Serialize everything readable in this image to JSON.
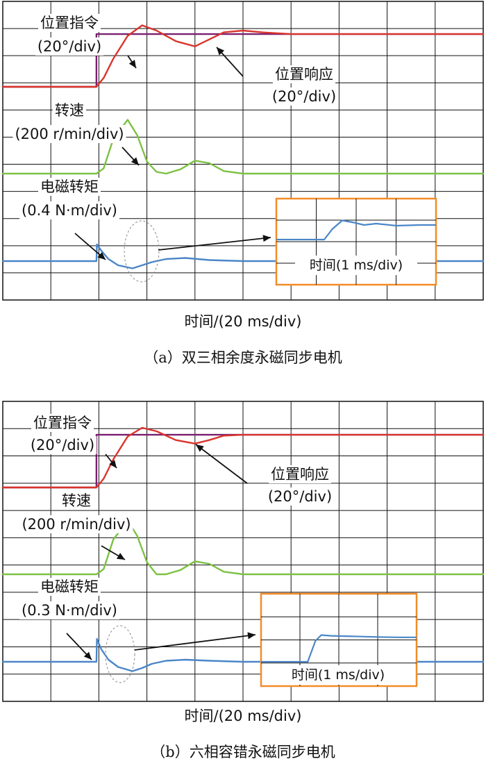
{
  "colors": {
    "command": "#7a1f6f",
    "position": "#d9342b",
    "speed": "#7cc142",
    "torque": "#4a86c8",
    "grid": "#111111",
    "inset_border": "#f28c28"
  },
  "panels": [
    {
      "caption": "（a）双三相余度永磁同步电机",
      "xlabel": "时间/(20 ms/div)",
      "labels": {
        "cmd": "位置指令",
        "cmd_div": "(20°/div)",
        "resp": "位置响应",
        "resp_div": "(20°/div)",
        "speed": "转速",
        "speed_div": "(200 r/min/div)",
        "torque": "电磁转矩",
        "torque_div": "(0.4 N·m/div)",
        "inset_xlabel": "时间(1 ms/div)"
      }
    },
    {
      "caption": "（b）六相容错永磁同步电机",
      "xlabel": "时间/(20 ms/div)",
      "labels": {
        "cmd": "位置指令",
        "cmd_div": "(20°/div)",
        "resp": "位置响应",
        "resp_div": "(20°/div)",
        "speed": "转速",
        "speed_div": "(200 r/min/div)",
        "torque": "电磁转矩",
        "torque_div": "(0.3 N·m/div)",
        "inset_xlabel": "时间(1 ms/div)"
      }
    }
  ],
  "chart_data": [
    {
      "type": "line",
      "x_unit": "div (20 ms/div)",
      "x_range": [
        0,
        10
      ],
      "step_time_div": 1.95,
      "series": [
        {
          "x": [
            0,
            1.95,
            1.95,
            10
          ],
          "y": [
            0,
            0,
            3,
            3
          ]
        },
        {
          "x": [
            0,
            1.95,
            2.1,
            2.3,
            2.6,
            2.9,
            3.2,
            3.6,
            4.0,
            4.3,
            4.6,
            5.0,
            5.4,
            6.0,
            10
          ],
          "y": [
            0,
            0,
            0.5,
            1.6,
            2.9,
            3.5,
            3.2,
            2.6,
            2.3,
            2.7,
            3.1,
            3.2,
            3.1,
            3.0,
            3.0
          ]
        },
        {
          "x": [
            0,
            1.95,
            2.1,
            2.3,
            2.6,
            2.8,
            3.0,
            3.2,
            3.4,
            3.7,
            4.0,
            4.3,
            4.6,
            5.0,
            5.5,
            10
          ],
          "y": [
            0,
            0,
            0.3,
            2.0,
            3.1,
            2.2,
            0.7,
            0.1,
            0,
            0.25,
            0.75,
            0.6,
            0.15,
            0,
            0,
            0
          ]
        },
        {
          "x": [
            0,
            1.95,
            1.96,
            2.05,
            2.2,
            2.4,
            2.7,
            2.9,
            3.1,
            3.4,
            3.8,
            4.3,
            5.0,
            10
          ],
          "y": [
            0,
            0,
            0.8,
            0.5,
            0.1,
            -0.2,
            -0.35,
            -0.2,
            -0.05,
            0.1,
            0.15,
            0.05,
            0,
            0
          ]
        }
      ],
      "inset": {
        "x_unit": "div (1 ms/div)",
        "x_range": [
          0,
          4
        ],
        "series": [
          {
            "x": [
              0,
              1.2,
              1.4,
              1.65,
              1.9,
              2.2,
              2.5,
              3.0,
              3.6,
              4.0
            ],
            "y": [
              0,
              0,
              0.3,
              0.55,
              0.5,
              0.42,
              0.46,
              0.4,
              0.42,
              0.42
            ]
          }
        ]
      }
    },
    {
      "type": "line",
      "x_unit": "div (20 ms/div)",
      "x_range": [
        0,
        10
      ],
      "step_time_div": 1.95,
      "series": [
        {
          "x": [
            0,
            1.95,
            1.95,
            10
          ],
          "y": [
            0,
            0,
            3,
            3
          ]
        },
        {
          "x": [
            0,
            1.95,
            2.1,
            2.3,
            2.6,
            2.9,
            3.2,
            3.6,
            4.0,
            4.3,
            4.6,
            5.0,
            5.4,
            6.0,
            10
          ],
          "y": [
            0,
            0,
            0.5,
            1.6,
            2.9,
            3.4,
            3.2,
            2.7,
            2.5,
            2.7,
            2.95,
            3.0,
            3.0,
            3.0,
            3.0
          ]
        },
        {
          "x": [
            0,
            1.95,
            2.1,
            2.3,
            2.6,
            2.8,
            3.0,
            3.2,
            3.4,
            3.7,
            4.0,
            4.3,
            4.6,
            5.0,
            5.5,
            10
          ],
          "y": [
            0,
            0,
            0.3,
            2.0,
            3.1,
            2.2,
            0.7,
            0.0,
            0,
            0.25,
            0.75,
            0.6,
            0.15,
            0,
            0,
            0
          ]
        },
        {
          "x": [
            0,
            1.95,
            1.96,
            2.05,
            2.2,
            2.4,
            2.7,
            2.9,
            3.1,
            3.4,
            3.8,
            4.3,
            5.0,
            10
          ],
          "y": [
            0,
            0,
            1.1,
            0.6,
            0.1,
            -0.25,
            -0.45,
            -0.3,
            -0.1,
            0.05,
            0.1,
            0.05,
            0,
            0
          ]
        }
      ],
      "inset": {
        "x_unit": "div (1 ms/div)",
        "x_range": [
          0,
          4
        ],
        "series": [
          {
            "x": [
              0,
              1.2,
              1.4,
              1.55,
              1.8,
              2.2,
              2.6,
              3.0,
              3.5,
              4.0
            ],
            "y": [
              0,
              0,
              0.55,
              0.7,
              0.68,
              0.67,
              0.66,
              0.65,
              0.64,
              0.64
            ]
          }
        ]
      }
    }
  ]
}
